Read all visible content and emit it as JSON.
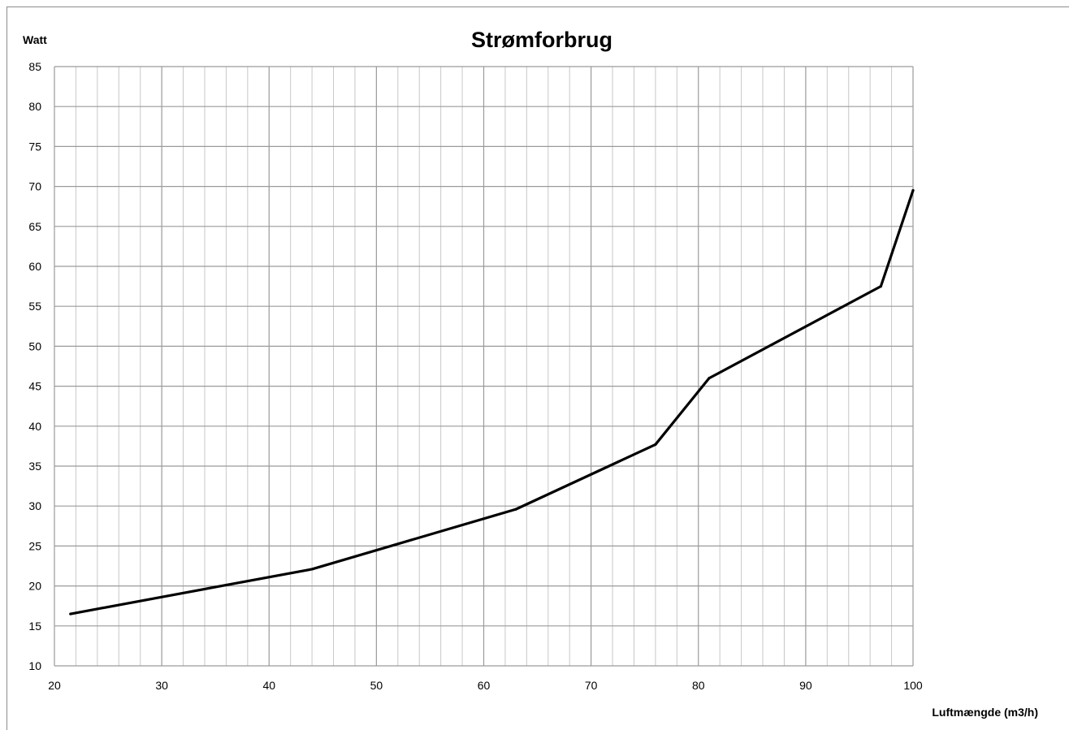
{
  "chart_data": {
    "type": "line",
    "title": "Strømforbrug",
    "xlabel": "Luftmængde (m3/h)",
    "ylabel": "Watt",
    "xlim": [
      20,
      100
    ],
    "ylim": [
      10,
      85
    ],
    "x_ticks": [
      20,
      30,
      40,
      50,
      60,
      70,
      80,
      90,
      100
    ],
    "y_ticks": [
      10,
      15,
      20,
      25,
      30,
      35,
      40,
      45,
      50,
      55,
      60,
      65,
      70,
      75,
      80,
      85
    ],
    "grid": true,
    "x_minor_step": 2,
    "legend": "none",
    "line_color": "#000000",
    "grid_color_major": "#9a9a9a",
    "grid_color_minor": "#c8c8c8",
    "series": [
      {
        "x": [
          21.5,
          44,
          63,
          76,
          81,
          97,
          100
        ],
        "values": [
          16.5,
          22.1,
          29.6,
          37.7,
          46,
          57.5,
          69.5
        ]
      }
    ]
  }
}
